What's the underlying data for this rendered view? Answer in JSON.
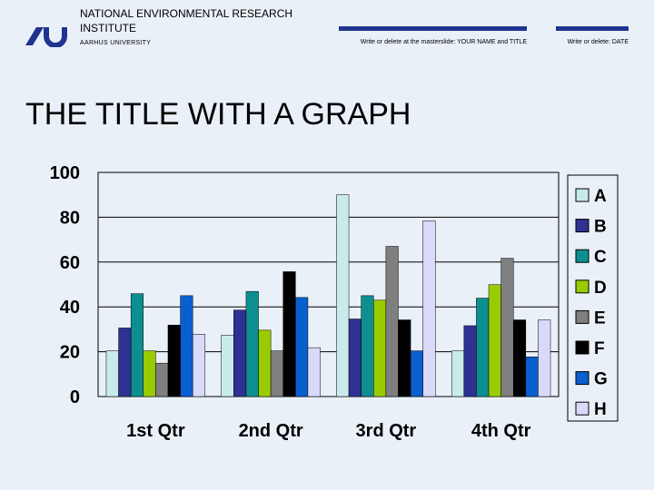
{
  "header": {
    "institute": "NATIONAL ENVIRONMENTAL RESEARCH INSTITUTE",
    "university": "AARHUS UNIVERSITY",
    "name_title_placeholder": "Write or delete at the masterslide: YOUR NAME and TITLE",
    "date_placeholder": "Write or delete: DATE"
  },
  "slide": {
    "title": "THE TITLE WITH A GRAPH"
  },
  "colors": {
    "background": "#e9f0f8",
    "accent": "#20348f"
  },
  "chart_data": {
    "type": "bar",
    "title": "",
    "xlabel": "",
    "ylabel": "",
    "ylim": [
      0,
      100
    ],
    "yticks": [
      0,
      20,
      40,
      60,
      80,
      100
    ],
    "categories": [
      "1st Qtr",
      "2nd Qtr",
      "3rd Qtr",
      "4th Qtr"
    ],
    "grid": true,
    "legend_position": "right",
    "series": [
      {
        "name": "A",
        "color": "#c8eaea",
        "values": [
          20.4,
          27.4,
          90,
          20.4
        ]
      },
      {
        "name": "B",
        "color": "#2e3192",
        "values": [
          30.6,
          38.6,
          34.6,
          31.6
        ]
      },
      {
        "name": "C",
        "color": "#0d8f91",
        "values": [
          45.9,
          46.9,
          45,
          43.9
        ]
      },
      {
        "name": "D",
        "color": "#99cc00",
        "values": [
          20.4,
          29.6,
          43,
          49.9
        ]
      },
      {
        "name": "E",
        "color": "#7f7f7f",
        "values": [
          14.9,
          20.4,
          67,
          61.7
        ]
      },
      {
        "name": "F",
        "color": "#000000",
        "values": [
          31.9,
          55.7,
          34.2,
          34.2
        ]
      },
      {
        "name": "G",
        "color": "#0a5fd0",
        "values": [
          45,
          44.2,
          20.4,
          17.7
        ]
      },
      {
        "name": "H",
        "color": "#d9d9fa",
        "values": [
          27.8,
          21.8,
          78.4,
          34.2
        ]
      }
    ]
  }
}
